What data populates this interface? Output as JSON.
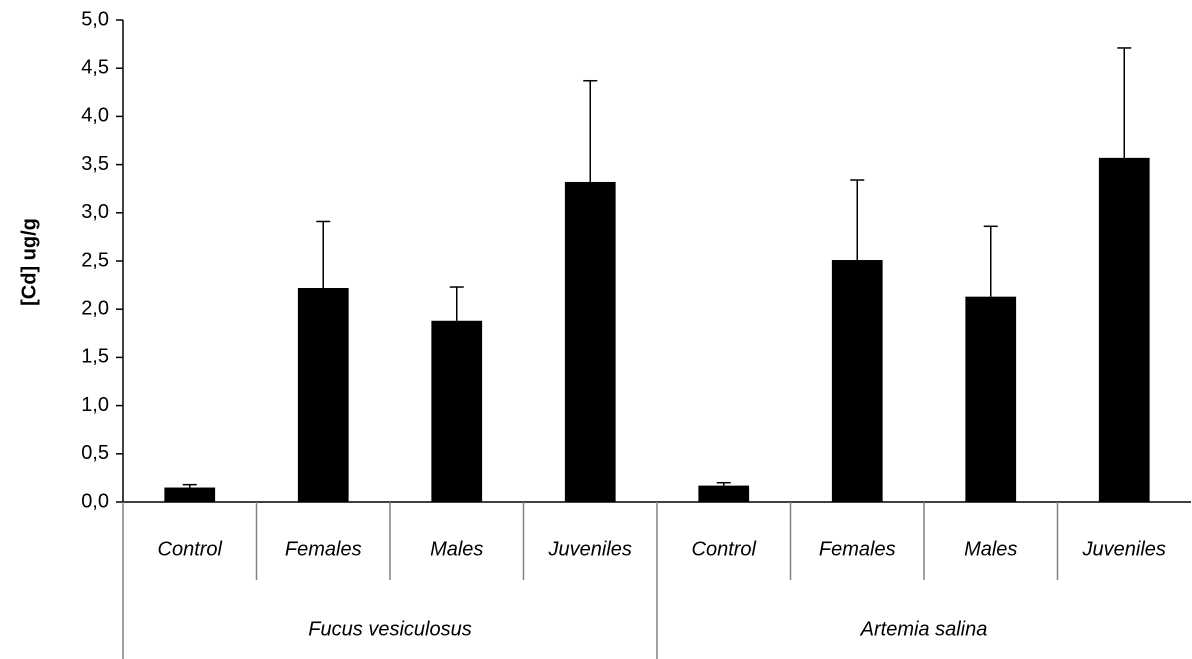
{
  "chart_data": {
    "type": "bar",
    "ylabel": "[Cd] ug/g",
    "xlabel": "",
    "ylim": [
      0,
      5
    ],
    "ytick_step": 0.5,
    "ytick_labels": [
      "0,0",
      "0,5",
      "1,0",
      "1,5",
      "2,0",
      "2,5",
      "3,0",
      "3,5",
      "4,0",
      "4,5",
      "5,0"
    ],
    "grid": false,
    "bar_color": "#000000",
    "groups": [
      {
        "label": "Fucus vesiculosus",
        "categories": [
          "Control",
          "Females",
          "Males",
          "Juveniles"
        ],
        "values": [
          0.15,
          2.22,
          1.88,
          3.32
        ],
        "errors": [
          0.03,
          0.69,
          0.35,
          1.05
        ]
      },
      {
        "label": "Artemia salina",
        "categories": [
          "Control",
          "Females",
          "Males",
          "Juveniles"
        ],
        "values": [
          0.17,
          2.51,
          2.13,
          3.57
        ],
        "errors": [
          0.03,
          0.83,
          0.73,
          1.14
        ]
      }
    ]
  }
}
